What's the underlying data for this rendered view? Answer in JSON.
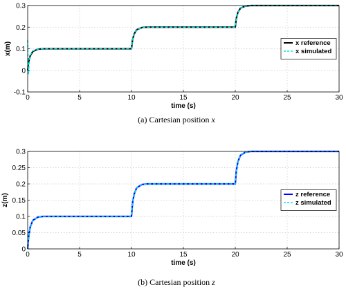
{
  "chart_data": [
    {
      "type": "line",
      "caption": "(a)  Cartesian position ",
      "caption_var": "x",
      "xlabel": "time (s)",
      "ylabel": "x(m)",
      "xlim": [
        0,
        30
      ],
      "ylim": [
        -0.1,
        0.3
      ],
      "xticks": [
        0,
        5,
        10,
        15,
        20,
        25,
        30
      ],
      "yticks": [
        -0.1,
        0,
        0.1,
        0.2,
        0.3
      ],
      "ytick_labels": [
        "-0.1",
        "0",
        "0.1",
        "0.2",
        "0.3"
      ],
      "grid": true,
      "legend_position": "right",
      "series": [
        {
          "name": "x reference",
          "color": "#000000",
          "style": "solid",
          "x": [
            0,
            0.1,
            0.25,
            0.5,
            1.0,
            1.5,
            2.0,
            10,
            10.1,
            10.25,
            10.5,
            11.0,
            11.5,
            12.0,
            20,
            20.1,
            20.25,
            20.5,
            21.0,
            21.5,
            22.0,
            30
          ],
          "y": [
            0,
            0.04,
            0.068,
            0.088,
            0.098,
            0.1,
            0.1,
            0.1,
            0.14,
            0.168,
            0.188,
            0.198,
            0.2,
            0.2,
            0.2,
            0.24,
            0.268,
            0.288,
            0.298,
            0.3,
            0.3,
            0.3
          ]
        },
        {
          "name": "x simulated",
          "color": "#00e5e5",
          "style": "dashed",
          "x": [
            0,
            0.03,
            0.08,
            0.14,
            0.2,
            0.3,
            0.5,
            1.0,
            1.5,
            2.0,
            10,
            10.1,
            10.25,
            10.5,
            11.0,
            11.5,
            12.0,
            20,
            20.1,
            20.25,
            20.5,
            21.0,
            21.5,
            22.0,
            30
          ],
          "y": [
            0.14,
            0.06,
            -0.02,
            0.03,
            0.06,
            0.075,
            0.09,
            0.098,
            0.1,
            0.1,
            0.1,
            0.14,
            0.168,
            0.188,
            0.198,
            0.2,
            0.2,
            0.2,
            0.24,
            0.268,
            0.288,
            0.298,
            0.3,
            0.3,
            0.3
          ]
        }
      ]
    },
    {
      "type": "line",
      "caption": "(b) Cartesian position ",
      "caption_var": "z",
      "xlabel": "time (s)",
      "ylabel": "z(m)",
      "xlim": [
        0,
        30
      ],
      "ylim": [
        0,
        0.3
      ],
      "xticks": [
        0,
        5,
        10,
        15,
        20,
        25,
        30
      ],
      "yticks": [
        0,
        0.05,
        0.1,
        0.15,
        0.2,
        0.25,
        0.3
      ],
      "ytick_labels": [
        "0",
        "0.05",
        "0.1",
        "0.15",
        "0.2",
        "0.25",
        "0.3"
      ],
      "grid": true,
      "legend_position": "right",
      "series": [
        {
          "name": "z reference",
          "color": "#0000ff",
          "style": "solid",
          "x": [
            0,
            0.1,
            0.25,
            0.5,
            1.0,
            1.5,
            2.0,
            10,
            10.1,
            10.25,
            10.5,
            11.0,
            11.5,
            12.0,
            20,
            20.1,
            20.25,
            20.5,
            21.0,
            21.5,
            22.0,
            30
          ],
          "y": [
            0,
            0.04,
            0.068,
            0.088,
            0.098,
            0.1,
            0.1,
            0.1,
            0.14,
            0.168,
            0.188,
            0.198,
            0.2,
            0.2,
            0.2,
            0.24,
            0.268,
            0.288,
            0.298,
            0.3,
            0.3,
            0.3
          ]
        },
        {
          "name": "z simulated",
          "color": "#00e5e5",
          "style": "dashed",
          "x": [
            0,
            0.1,
            0.25,
            0.5,
            1.0,
            1.5,
            2.0,
            10,
            10.1,
            10.25,
            10.5,
            11.0,
            11.5,
            12.0,
            20,
            20.1,
            20.25,
            20.5,
            21.0,
            21.5,
            22.0,
            30
          ],
          "y": [
            0,
            0.04,
            0.068,
            0.088,
            0.098,
            0.1,
            0.1,
            0.1,
            0.14,
            0.168,
            0.188,
            0.198,
            0.2,
            0.2,
            0.2,
            0.24,
            0.268,
            0.288,
            0.298,
            0.3,
            0.3,
            0.3
          ]
        }
      ]
    }
  ]
}
